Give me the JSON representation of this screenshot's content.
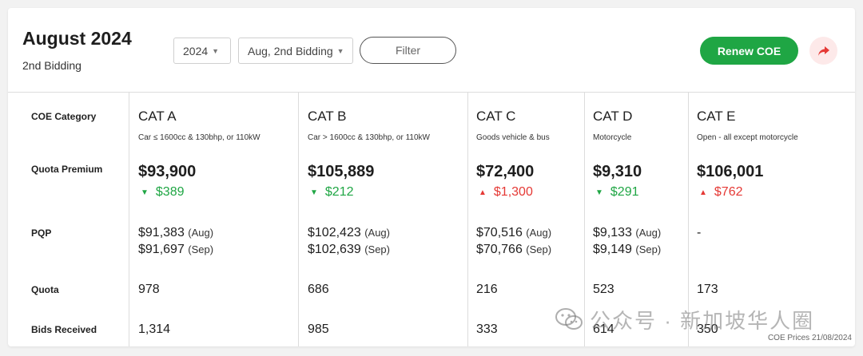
{
  "header": {
    "title": "August 2024",
    "subtitle": "2nd Bidding",
    "year_select": "2024",
    "bidding_select": "Aug, 2nd Bidding",
    "filter_label": "Filter",
    "renew_label": "Renew COE",
    "accent_green": "#1fa644",
    "accent_red": "#e53935"
  },
  "table": {
    "row_labels": {
      "category": "COE Category",
      "premium": "Quota Premium",
      "pqp": "PQP",
      "quota": "Quota",
      "bids": "Bids Received"
    },
    "categories": [
      {
        "name": "CAT A",
        "desc": "Car ≤ 1600cc & 130bhp, or 110kW",
        "premium": "$93,900",
        "change": "$389",
        "direction": "down",
        "pqp1": "$91,383",
        "pqp1_month": "(Aug)",
        "pqp2": "$91,697",
        "pqp2_month": "(Sep)",
        "quota": "978",
        "bids": "1,314"
      },
      {
        "name": "CAT B",
        "desc": "Car > 1600cc & 130bhp, or 110kW",
        "premium": "$105,889",
        "change": "$212",
        "direction": "down",
        "pqp1": "$102,423",
        "pqp1_month": "(Aug)",
        "pqp2": "$102,639",
        "pqp2_month": "(Sep)",
        "quota": "686",
        "bids": "985"
      },
      {
        "name": "CAT C",
        "desc": "Goods vehicle & bus",
        "premium": "$72,400",
        "change": "$1,300",
        "direction": "up",
        "pqp1": "$70,516",
        "pqp1_month": "(Aug)",
        "pqp2": "$70,766",
        "pqp2_month": "(Sep)",
        "quota": "216",
        "bids": "333"
      },
      {
        "name": "CAT D",
        "desc": "Motorcycle",
        "premium": "$9,310",
        "change": "$291",
        "direction": "down",
        "pqp1": "$9,133",
        "pqp1_month": "(Aug)",
        "pqp2": "$9,149",
        "pqp2_month": "(Sep)",
        "quota": "523",
        "bids": "614"
      },
      {
        "name": "CAT E",
        "desc": "Open - all except motorcycle",
        "premium": "$106,001",
        "change": "$762",
        "direction": "up",
        "pqp_dash": "-",
        "quota": "173",
        "bids": "350"
      }
    ]
  },
  "watermark": {
    "text": "公众号 · 新加坡华人圈",
    "icon": "wechat-icon"
  },
  "footer_note": "COE Prices 21/08/2024"
}
